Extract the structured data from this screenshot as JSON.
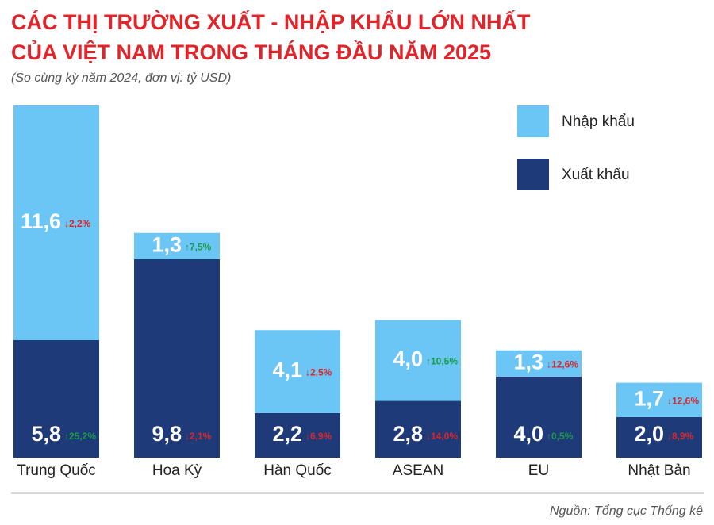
{
  "chart_data": {
    "type": "stacked-bar",
    "title": [
      "CÁC THỊ TRƯỜNG XUẤT - NHẬP KHẨU LỚN NHẤT",
      "CỦA VIỆT NAM TRONG THÁNG ĐẦU NĂM 2025"
    ],
    "subtitle": "(So cùng kỳ năm 2024, đơn vị: tỷ USD)",
    "source": "Nguồn: Tổng cục Thống kê",
    "categories": [
      "Trung Quốc",
      "Hoa Kỳ",
      "Hàn Quốc",
      "ASEAN",
      "EU",
      "Nhật Bản"
    ],
    "series": [
      {
        "name": "Xuất khẩu",
        "color": "#1f3a78",
        "values": [
          5.8,
          9.8,
          2.2,
          2.8,
          4.0,
          2.0
        ],
        "value_labels": [
          "5,8",
          "9,8",
          "2,2",
          "2,8",
          "4,0",
          "2,0"
        ],
        "changes": [
          {
            "value": 25.2,
            "label": "↑25,2%"
          },
          {
            "value": -2.1,
            "label": "↓2,1%"
          },
          {
            "value": -6.9,
            "label": "↓6,9%"
          },
          {
            "value": -14.0,
            "label": "↓14,0%"
          },
          {
            "value": 0.5,
            "label": "↑0,5%"
          },
          {
            "value": -8.9,
            "label": "↓8,9%"
          }
        ]
      },
      {
        "name": "Nhập khẩu",
        "color": "#6cc6f5",
        "values": [
          11.6,
          1.3,
          4.1,
          4.0,
          1.3,
          1.7
        ],
        "value_labels": [
          "11,6",
          "1,3",
          "4,1",
          "4,0",
          "1,3",
          "1,7"
        ],
        "changes": [
          {
            "value": -2.2,
            "label": "↓2,2%"
          },
          {
            "value": 7.5,
            "label": "↑7,5%"
          },
          {
            "value": -2.5,
            "label": "↓2,5%"
          },
          {
            "value": 10.5,
            "label": "↑10,5%"
          },
          {
            "value": -12.6,
            "label": "↓12,6%"
          },
          {
            "value": -12.6,
            "label": "↓12,6%"
          }
        ]
      }
    ],
    "change_colors": {
      "up": "#1a9a4a",
      "down": "#d9262b"
    }
  }
}
